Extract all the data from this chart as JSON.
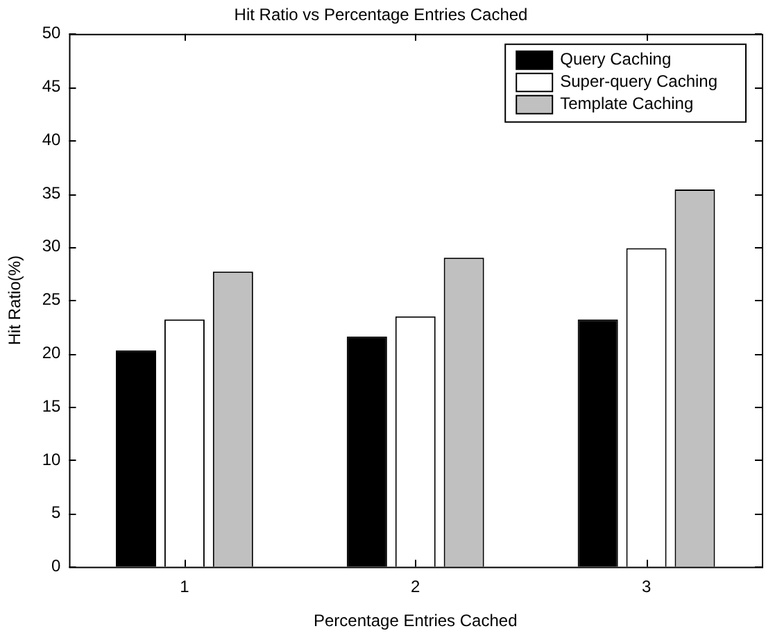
{
  "chart_data": {
    "type": "bar",
    "title": "Hit Ratio vs Percentage Entries Cached",
    "xlabel": "Percentage Entries Cached",
    "ylabel": "Hit Ratio(%)",
    "categories": [
      "1",
      "2",
      "3"
    ],
    "series": [
      {
        "name": "Query Caching",
        "color": "#000000",
        "values": [
          20.3,
          21.6,
          23.2
        ]
      },
      {
        "name": "Super-query Caching",
        "color": "#ffffff",
        "values": [
          23.2,
          23.5,
          29.9
        ]
      },
      {
        "name": "Template Caching",
        "color": "#c0c0c0",
        "values": [
          27.7,
          29.0,
          35.4
        ]
      }
    ],
    "ylim": [
      0,
      50
    ],
    "yticks": [
      0,
      5,
      10,
      15,
      20,
      25,
      30,
      35,
      40,
      45,
      50
    ],
    "legend": "top right"
  }
}
